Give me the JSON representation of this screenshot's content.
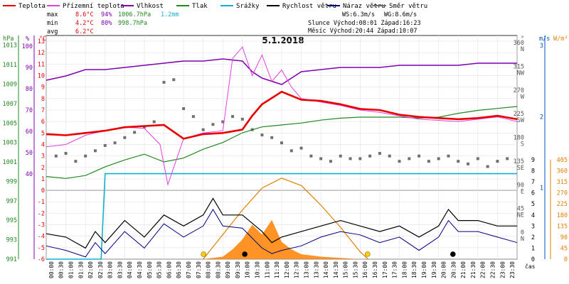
{
  "chart_data": {
    "type": "line",
    "title": "5.1.2018",
    "x_label": "čas",
    "legend": [
      {
        "name": "Teplota",
        "color": "#e80000"
      },
      {
        "name": "Přízemní teplota",
        "color": "#e040e0"
      },
      {
        "name": "Vlhkost",
        "color": "#8000b0"
      },
      {
        "name": "Tlak",
        "color": "#208820"
      },
      {
        "name": "Srážky",
        "color": "#10b0d0"
      },
      {
        "name": "Rychlost větru",
        "color": "#000000"
      },
      {
        "name": "Náraz větru",
        "color": "#000080"
      },
      {
        "name": "Směr větru",
        "color": "#707070"
      }
    ],
    "stats": {
      "max": {
        "label": "max",
        "temp": "8.6°C",
        "hum": "94%",
        "press": "1006.7hPa",
        "rain": "1.2mm"
      },
      "min": {
        "label": "min",
        "temp": "4.2°C",
        "hum": "80%",
        "press": "998.7hPa"
      },
      "avg": {
        "label": "avg",
        "temp": "6.2°C"
      },
      "ws": "WS:6.3m/s",
      "wg": "WG:8.6m/s",
      "sun": "Slunce Východ:08:01  Západ:16:23",
      "moon": "Měsíc  Východ:20:44  Západ:10:07"
    },
    "axes": {
      "hpa": {
        "unit": "hPa",
        "ticks": [
          "991",
          "993",
          "995",
          "997",
          "999",
          "1001",
          "1003",
          "1005",
          "1007",
          "1009",
          "1011",
          "1013"
        ],
        "color": "#208820"
      },
      "pct": {
        "unit": "%",
        "ticks": [
          "40",
          "50",
          "60",
          "70",
          "80",
          "90",
          "100"
        ],
        "color": "#8000b0"
      },
      "temp": {
        "unit": "°C",
        "ticks": [
          "-6",
          "-5",
          "-4",
          "-3",
          "-2",
          "-1",
          "0",
          "1",
          "2",
          "3",
          "4",
          "5",
          "6",
          "7",
          "8",
          "9",
          "10",
          "11",
          "12",
          "13"
        ],
        "color": "#e80000"
      },
      "dir": {
        "unit": "°",
        "ticks": [
          "0",
          "45",
          "90",
          "135",
          "180",
          "225",
          "270",
          "315",
          "360"
        ],
        "compass": [
          "N",
          "NE",
          "E",
          "SE",
          "S",
          "SW",
          "W",
          "NW",
          "N"
        ],
        "color": "#555555"
      },
      "ms": {
        "unit": "m/s",
        "ticks": [
          "1",
          "2",
          "3"
        ],
        "color": "#0050c0"
      },
      "rad": {
        "unit": "W/m²",
        "ticks": [
          "0",
          "45",
          "90",
          "135",
          "180",
          "225",
          "270",
          "315",
          "360",
          "405"
        ],
        "color": "#e08000"
      },
      "rain_right": {
        "ticks": [
          "0",
          "1",
          "2",
          "3",
          "4",
          "5",
          "6",
          "7",
          "8",
          "9"
        ],
        "color": "#000000"
      }
    },
    "x_ticks": [
      "00:00",
      "00:30",
      "01:00",
      "01:30",
      "02:00",
      "02:30",
      "03:00",
      "03:30",
      "04:00",
      "04:30",
      "05:00",
      "05:30",
      "06:00",
      "06:30",
      "07:00",
      "07:30",
      "08:00",
      "08:30",
      "09:00",
      "09:30",
      "10:00",
      "10:30",
      "11:00",
      "11:30",
      "12:00",
      "12:30",
      "13:00",
      "13:30",
      "14:00",
      "14:30",
      "15:00",
      "15:30",
      "16:00",
      "16:30",
      "17:00",
      "17:30",
      "18:00",
      "18:30",
      "19:00",
      "19:30",
      "20:00",
      "20:30",
      "21:00",
      "21:30",
      "22:00",
      "22:30",
      "23:00",
      "23:30"
    ],
    "series": {
      "temperature": {
        "x": [
          0,
          1,
          2,
          3,
          4,
          5,
          6,
          7,
          8,
          9,
          10,
          10.5,
          11,
          12,
          13,
          14,
          15,
          16,
          17,
          18,
          19,
          20,
          21,
          22,
          23,
          24
        ],
        "y": [
          4.9,
          4.8,
          5.0,
          5.2,
          5.5,
          5.6,
          5.7,
          4.5,
          4.9,
          5.0,
          5.3,
          6.5,
          7.5,
          8.6,
          7.9,
          7.8,
          7.5,
          7.1,
          7.0,
          6.6,
          6.4,
          6.3,
          6.2,
          6.3,
          6.5,
          6.2
        ]
      },
      "ground_temperature": {
        "x": [
          0,
          1,
          2,
          3,
          4,
          5,
          5.8,
          6.2,
          7,
          8,
          9,
          9.5,
          10,
          10.5,
          11,
          11.5,
          12,
          12.5,
          13,
          14,
          15,
          16,
          17,
          18,
          19,
          20,
          21,
          22,
          23,
          24
        ],
        "y": [
          3.8,
          4.0,
          4.8,
          5.2,
          5.5,
          5.4,
          4.0,
          0.5,
          4.5,
          5.0,
          5.2,
          11.5,
          12.5,
          10.0,
          11.8,
          9.5,
          10.5,
          9.0,
          8.0,
          7.7,
          7.4,
          7.0,
          6.8,
          6.5,
          6.2,
          6.1,
          6.0,
          6.2,
          6.4,
          6.0
        ]
      },
      "humidity": {
        "x": [
          0,
          1,
          2,
          3,
          4,
          5,
          6,
          7,
          8,
          9,
          10,
          10.5,
          11,
          12,
          13,
          14,
          15,
          16,
          17,
          18,
          19,
          20,
          21,
          22,
          23,
          24
        ],
        "y": [
          84,
          86,
          89,
          89,
          90,
          91,
          92,
          93,
          93,
          94,
          93,
          88,
          85,
          82,
          88,
          89,
          90,
          90,
          90,
          91,
          91,
          91,
          91,
          92,
          92,
          92
        ]
      },
      "pressure": {
        "x": [
          0,
          1,
          2,
          3,
          4,
          5,
          6,
          7,
          8,
          9,
          10,
          11,
          12,
          13,
          14,
          15,
          16,
          17,
          18,
          19,
          20,
          21,
          22,
          23,
          24
        ],
        "y": [
          999.5,
          999.3,
          999.6,
          1000.5,
          1001.2,
          1001.8,
          1001.0,
          1001.4,
          1002.3,
          1003.0,
          1004.0,
          1004.6,
          1004.8,
          1005.0,
          1005.3,
          1005.5,
          1005.6,
          1005.6,
          1005.6,
          1005.5,
          1005.6,
          1006.0,
          1006.3,
          1006.5,
          1006.7
        ]
      },
      "rain_line": {
        "x": [
          0,
          2.8,
          3.0,
          24
        ],
        "y": [
          0,
          0,
          1.2,
          1.2
        ]
      },
      "wind_speed": {
        "x": [
          0,
          1,
          2,
          2.5,
          3,
          4,
          5,
          6,
          7,
          8,
          8.5,
          9,
          10,
          11,
          11.5,
          12,
          13,
          14,
          15,
          16,
          17,
          18,
          19,
          20,
          20.5,
          21,
          22,
          23,
          24
        ],
        "y": [
          2.3,
          2.0,
          1.0,
          2.5,
          1.5,
          3.5,
          2.0,
          4.0,
          3.0,
          4.0,
          5.5,
          4.0,
          4.0,
          2.5,
          1.5,
          2.0,
          2.5,
          3.0,
          3.5,
          3.0,
          2.5,
          3.0,
          2.0,
          3.0,
          4.5,
          3.5,
          3.5,
          3.0,
          3.0
        ]
      },
      "wind_gust": {
        "x": [
          0,
          1,
          2,
          2.5,
          3,
          4,
          5,
          6,
          7,
          8,
          8.5,
          9,
          10,
          11,
          11.5,
          12,
          13,
          14,
          15,
          16,
          17,
          18,
          19,
          20,
          20.5,
          21,
          22,
          23,
          24
        ],
        "y": [
          1.2,
          0.8,
          0.2,
          1.5,
          0.5,
          2.5,
          1.0,
          3.2,
          2.0,
          3.0,
          4.5,
          3.0,
          2.8,
          1.0,
          0.5,
          0.8,
          1.2,
          2.0,
          2.5,
          2.2,
          1.5,
          2.0,
          0.8,
          2.0,
          3.5,
          2.5,
          2.5,
          2.0,
          1.5
        ]
      },
      "solar_radiation": {
        "x": [
          8.0,
          9.0,
          9.5,
          10.0,
          10.5,
          11.0,
          11.5,
          12.0,
          12.5,
          13.0,
          13.5,
          14.0,
          15.0,
          16.0,
          16.4
        ],
        "y": [
          0,
          10,
          40,
          80,
          140,
          100,
          160,
          70,
          40,
          20,
          15,
          10,
          5,
          0,
          0
        ]
      },
      "solar_theoretical": {
        "x": [
          8.0,
          9.0,
          10.0,
          11.0,
          12.0,
          13.0,
          14.0,
          15.0,
          16.0,
          16.4
        ],
        "y": [
          0,
          100,
          200,
          290,
          330,
          300,
          220,
          130,
          30,
          0
        ]
      },
      "wind_direction_scatter": {
        "x": [
          0.5,
          1,
          1.5,
          2,
          2.5,
          3,
          3.5,
          4,
          4.5,
          5,
          5.5,
          6,
          6.5,
          7,
          7.5,
          8,
          8.5,
          9,
          9.5,
          10,
          10.5,
          11,
          11.5,
          12,
          12.5,
          13,
          13.5,
          14,
          14.5,
          15,
          15.5,
          16,
          16.5,
          17,
          17.5,
          18,
          18.5,
          19,
          19.5,
          20,
          20.5,
          21,
          21.5,
          22,
          22.5,
          23,
          23.5
        ],
        "y": [
          150,
          155,
          140,
          150,
          160,
          170,
          175,
          185,
          195,
          205,
          215,
          290,
          295,
          240,
          225,
          200,
          210,
          215,
          225,
          220,
          200,
          190,
          185,
          175,
          160,
          165,
          150,
          145,
          140,
          150,
          145,
          145,
          150,
          155,
          150,
          140,
          145,
          150,
          140,
          145,
          150,
          140,
          135,
          145,
          130,
          140,
          145
        ]
      }
    }
  }
}
